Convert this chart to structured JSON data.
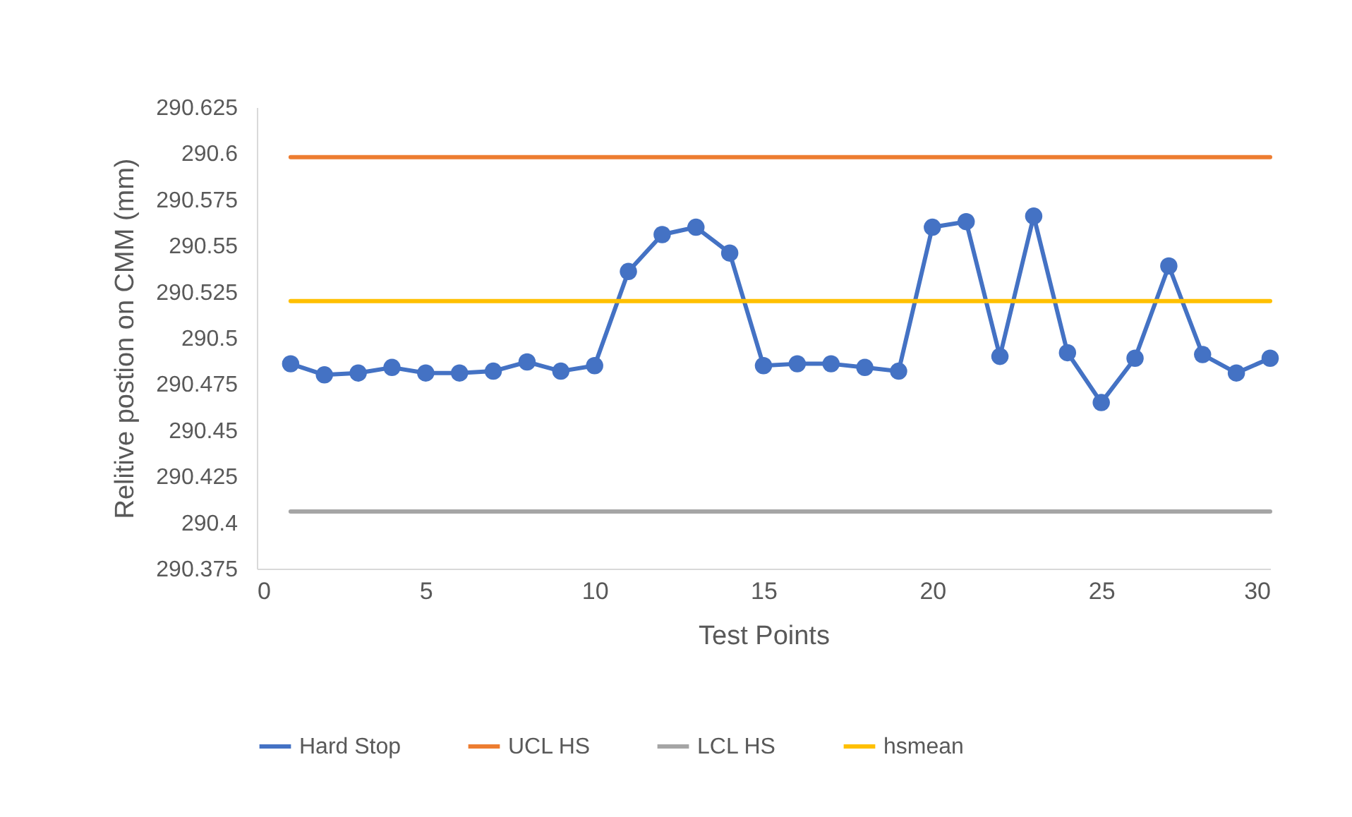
{
  "chart_data": {
    "type": "line",
    "xlabel": "Test Points",
    "ylabel": "Relitive postion on CMM (mm)",
    "x": [
      1,
      2,
      3,
      4,
      5,
      6,
      7,
      8,
      9,
      10,
      11,
      12,
      13,
      14,
      15,
      16,
      17,
      18,
      19,
      20,
      21,
      22,
      23,
      24,
      25,
      26,
      27,
      28,
      29,
      30
    ],
    "series": [
      {
        "name": "Hard Stop",
        "color": "#4472c4",
        "marker": "circle",
        "values": [
          290.486,
          290.48,
          290.481,
          290.484,
          290.481,
          290.481,
          290.482,
          290.487,
          290.482,
          290.485,
          290.536,
          290.556,
          290.56,
          290.546,
          290.485,
          290.486,
          290.486,
          290.484,
          290.482,
          290.56,
          290.563,
          290.49,
          290.566,
          290.492,
          290.465,
          290.489,
          290.539,
          290.491,
          290.481,
          290.489
        ]
      },
      {
        "name": "UCL HS",
        "color": "#ed7d31",
        "values": [
          290.598,
          290.598,
          290.598,
          290.598,
          290.598,
          290.598,
          290.598,
          290.598,
          290.598,
          290.598,
          290.598,
          290.598,
          290.598,
          290.598,
          290.598,
          290.598,
          290.598,
          290.598,
          290.598,
          290.598,
          290.598,
          290.598,
          290.598,
          290.598,
          290.598,
          290.598,
          290.598,
          290.598,
          290.598,
          290.598
        ]
      },
      {
        "name": "LCL HS",
        "color": "#a5a5a5",
        "values": [
          290.406,
          290.406,
          290.406,
          290.406,
          290.406,
          290.406,
          290.406,
          290.406,
          290.406,
          290.406,
          290.406,
          290.406,
          290.406,
          290.406,
          290.406,
          290.406,
          290.406,
          290.406,
          290.406,
          290.406,
          290.406,
          290.406,
          290.406,
          290.406,
          290.406,
          290.406,
          290.406,
          290.406,
          290.406,
          290.406
        ]
      },
      {
        "name": "hsmean",
        "color": "#ffc000",
        "values": [
          290.52,
          290.52,
          290.52,
          290.52,
          290.52,
          290.52,
          290.52,
          290.52,
          290.52,
          290.52,
          290.52,
          290.52,
          290.52,
          290.52,
          290.52,
          290.52,
          290.52,
          290.52,
          290.52,
          290.52,
          290.52,
          290.52,
          290.52,
          290.52,
          290.52,
          290.52,
          290.52,
          290.52,
          290.52,
          290.52
        ]
      }
    ],
    "xlim": [
      0,
      30
    ],
    "xticks": [
      0,
      5,
      10,
      15,
      20,
      25,
      30
    ],
    "ylim": [
      290.375,
      290.625
    ],
    "yticks": [
      290.375,
      290.4,
      290.425,
      290.45,
      290.475,
      290.5,
      290.525,
      290.55,
      290.575,
      290.6,
      290.625
    ],
    "grid": false,
    "legend": "bottom",
    "line_style": "solid"
  }
}
